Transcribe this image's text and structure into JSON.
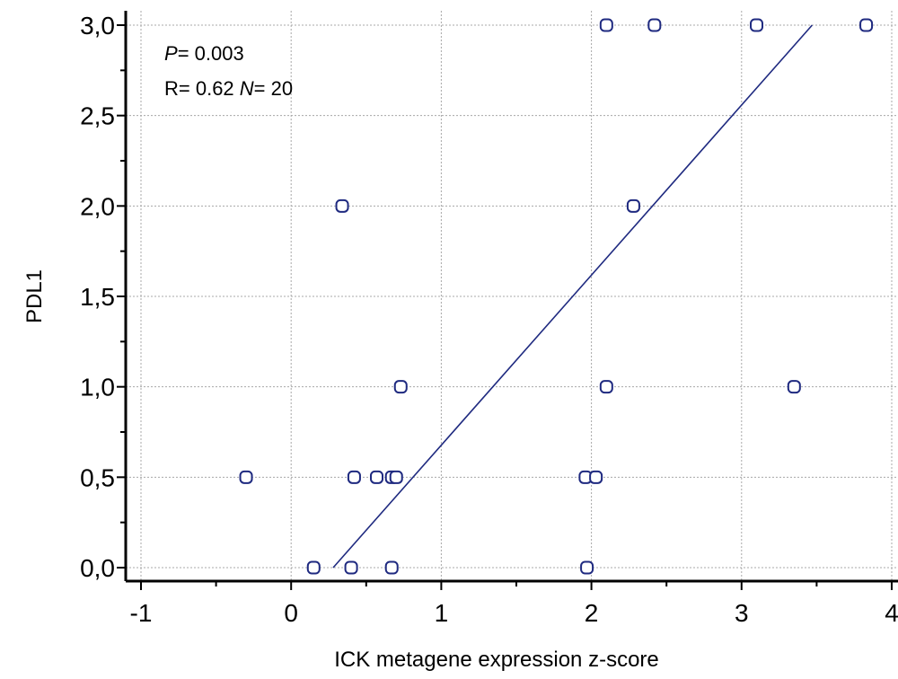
{
  "chart_data": {
    "type": "scatter",
    "xlabel": "ICK metagene expression z-score",
    "ylabel": "PDL1",
    "xlim": [
      -1,
      4
    ],
    "ylim": [
      0,
      3
    ],
    "x_ticks": [
      "-1",
      "0",
      "1",
      "2",
      "3",
      "4"
    ],
    "y_ticks": [
      "0,0",
      "0,5",
      "1,0",
      "1,5",
      "2,0",
      "2,5",
      "3,0"
    ],
    "grid": true,
    "annotations": {
      "p_italic": "P",
      "p_text": "= 0.003",
      "r_text": "R= 0.62 ",
      "n_italic": "N",
      "n_text": "= 20"
    },
    "points": [
      {
        "x": 2.1,
        "y": 3.0
      },
      {
        "x": 2.42,
        "y": 3.0
      },
      {
        "x": 3.1,
        "y": 3.0
      },
      {
        "x": 3.83,
        "y": 3.0
      },
      {
        "x": 0.34,
        "y": 2.0
      },
      {
        "x": 2.28,
        "y": 2.0
      },
      {
        "x": 0.73,
        "y": 1.0
      },
      {
        "x": 2.1,
        "y": 1.0
      },
      {
        "x": 3.35,
        "y": 1.0
      },
      {
        "x": -0.3,
        "y": 0.5
      },
      {
        "x": 0.42,
        "y": 0.5
      },
      {
        "x": 0.57,
        "y": 0.5
      },
      {
        "x": 0.67,
        "y": 0.5
      },
      {
        "x": 0.7,
        "y": 0.5
      },
      {
        "x": 1.96,
        "y": 0.5
      },
      {
        "x": 2.03,
        "y": 0.5
      },
      {
        "x": 0.15,
        "y": 0.0
      },
      {
        "x": 0.4,
        "y": 0.0
      },
      {
        "x": 0.67,
        "y": 0.0
      },
      {
        "x": 1.97,
        "y": 0.0
      }
    ],
    "fit_line": {
      "x": [
        0.28,
        3.47
      ],
      "y": [
        0.0,
        3.0
      ]
    },
    "colors": {
      "points": "#1f2a80",
      "line": "#1f2a80",
      "grid": "#a8a8a8"
    }
  }
}
